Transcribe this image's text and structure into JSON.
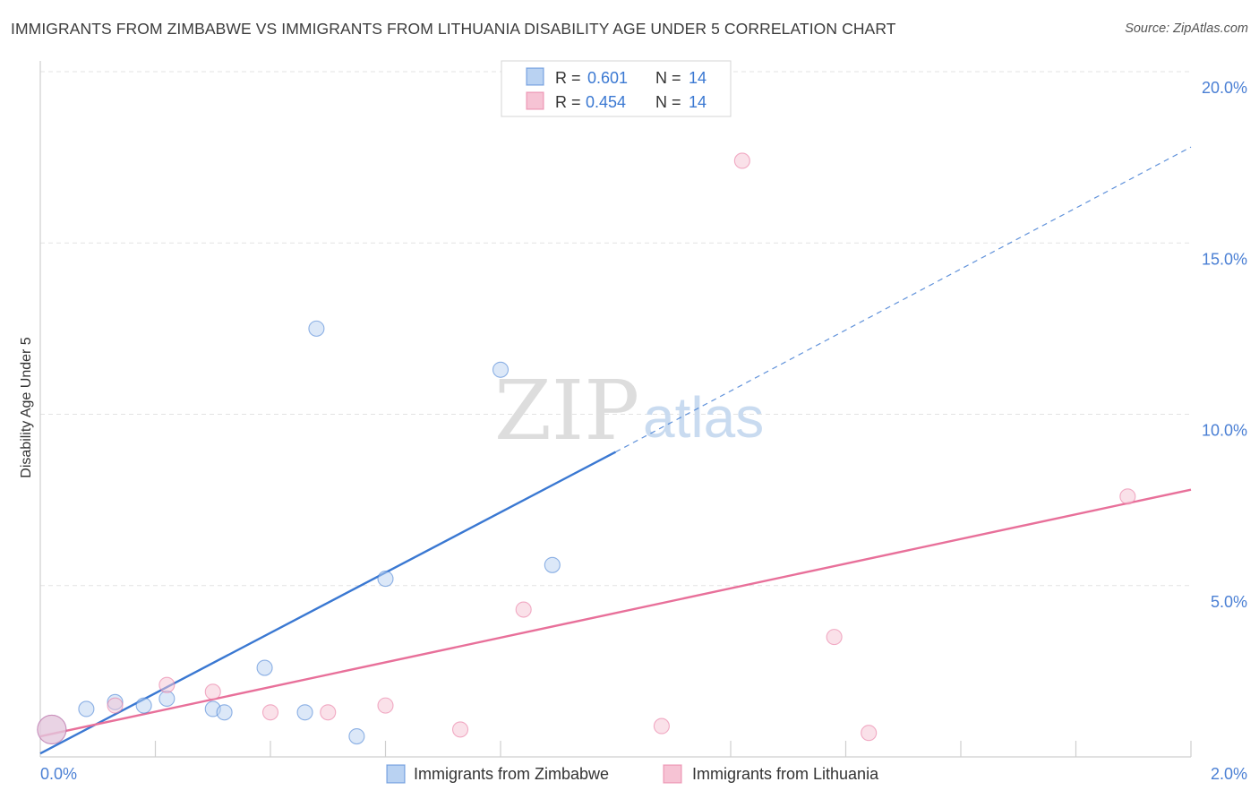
{
  "title": "IMMIGRANTS FROM ZIMBABWE VS IMMIGRANTS FROM LITHUANIA DISABILITY AGE UNDER 5 CORRELATION CHART",
  "source": "Source: ZipAtlas.com",
  "watermark": {
    "zip": "ZIP",
    "atlas": "atlas"
  },
  "colors": {
    "zimbabwe": "#3a78d2",
    "zimbabwe_fill": "#b9d2f2",
    "lithuania": "#e8709a",
    "lithuania_fill": "#f6c3d4",
    "grid": "#e3e3e3",
    "tick_label": "#4a7fd4"
  },
  "legend": {
    "rows": [
      {
        "r_label": "R =",
        "r_value": "0.601",
        "n_label": "N =",
        "n_value": "14",
        "series": "zimbabwe"
      },
      {
        "r_label": "R =",
        "r_value": "0.454",
        "n_label": "N =",
        "n_value": "14",
        "series": "lithuania"
      }
    ]
  },
  "bottom_legend": [
    {
      "label": "Immigrants from Zimbabwe",
      "series": "zimbabwe"
    },
    {
      "label": "Immigrants from Lithuania",
      "series": "lithuania"
    }
  ],
  "chart_data": {
    "type": "scatter",
    "xlabel": "",
    "ylabel": "Disability Age Under 5",
    "xlim": [
      0,
      2.0
    ],
    "ylim": [
      0,
      20.0
    ],
    "x_tick_labels": [
      {
        "value": 0,
        "label": "0.0%"
      },
      {
        "value": 2.0,
        "label": "2.0%"
      }
    ],
    "y_tick_labels": [
      {
        "value": 5,
        "label": "5.0%"
      },
      {
        "value": 10,
        "label": "10.0%"
      },
      {
        "value": 15,
        "label": "15.0%"
      },
      {
        "value": 20,
        "label": "20.0%"
      }
    ],
    "x_minor_ticks": [
      0.2,
      0.4,
      0.6,
      0.8,
      1.2,
      1.4,
      1.6,
      1.8
    ],
    "series": [
      {
        "name": "Immigrants from Zimbabwe",
        "key": "zimbabwe",
        "points": [
          {
            "x": 0.02,
            "y": 0.8,
            "big": true
          },
          {
            "x": 0.08,
            "y": 1.4
          },
          {
            "x": 0.13,
            "y": 1.6
          },
          {
            "x": 0.18,
            "y": 1.5
          },
          {
            "x": 0.22,
            "y": 1.7
          },
          {
            "x": 0.3,
            "y": 1.4
          },
          {
            "x": 0.32,
            "y": 1.3
          },
          {
            "x": 0.39,
            "y": 2.6
          },
          {
            "x": 0.46,
            "y": 1.3
          },
          {
            "x": 0.48,
            "y": 12.5
          },
          {
            "x": 0.55,
            "y": 0.6
          },
          {
            "x": 0.6,
            "y": 5.2
          },
          {
            "x": 0.8,
            "y": 11.3
          },
          {
            "x": 0.89,
            "y": 5.6
          }
        ],
        "trend": {
          "x0": 0,
          "y0": 0.1,
          "x1": 1.0,
          "y1": 8.9,
          "dashed_to_x": 2.0,
          "dashed_to_y": 17.8
        }
      },
      {
        "name": "Immigrants from Lithuania",
        "key": "lithuania",
        "points": [
          {
            "x": 0.02,
            "y": 0.8,
            "big": true
          },
          {
            "x": 0.13,
            "y": 1.5
          },
          {
            "x": 0.22,
            "y": 2.1
          },
          {
            "x": 0.3,
            "y": 1.9
          },
          {
            "x": 0.4,
            "y": 1.3
          },
          {
            "x": 0.5,
            "y": 1.3
          },
          {
            "x": 0.6,
            "y": 1.5
          },
          {
            "x": 0.73,
            "y": 0.8
          },
          {
            "x": 0.84,
            "y": 4.3
          },
          {
            "x": 1.08,
            "y": 0.9
          },
          {
            "x": 1.22,
            "y": 17.4
          },
          {
            "x": 1.38,
            "y": 3.5
          },
          {
            "x": 1.44,
            "y": 0.7
          },
          {
            "x": 1.89,
            "y": 7.6
          }
        ],
        "trend": {
          "x0": 0,
          "y0": 0.6,
          "x1": 2.0,
          "y1": 7.8
        }
      }
    ]
  }
}
